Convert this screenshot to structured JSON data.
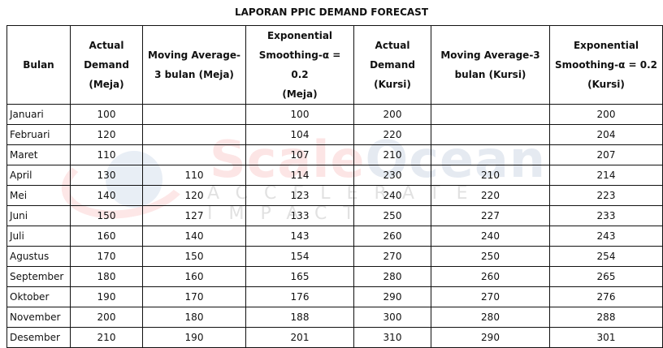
{
  "title": "LAPORAN PPIC DEMAND FORECAST",
  "watermark": {
    "brand_part1": "Scale",
    "brand_part2": "Ocean",
    "tagline": "ACCELERATE IMPACT",
    "colors": {
      "scale": "#f06e6e",
      "ocean": "#b4c3d7"
    }
  },
  "table": {
    "headers": [
      {
        "lines": [
          "Bulan"
        ]
      },
      {
        "lines": [
          "Actual",
          "Demand",
          "(Meja)"
        ]
      },
      {
        "lines": [
          "Moving Average-",
          "3 bulan (Meja)"
        ]
      },
      {
        "lines": [
          "Exponential",
          "Smoothing-α = 0.2",
          "(Meja)"
        ]
      },
      {
        "lines": [
          "Actual",
          "Demand",
          "(Kursi)"
        ]
      },
      {
        "lines": [
          "Moving Average-3",
          "bulan (Kursi)"
        ]
      },
      {
        "lines": [
          "Exponential",
          "Smoothing-α = 0.2",
          "(Kursi)"
        ]
      }
    ],
    "rows": [
      [
        "Januari",
        "100",
        "",
        "100",
        "200",
        "",
        "200"
      ],
      [
        "Februari",
        "120",
        "",
        "104",
        "220",
        "",
        "204"
      ],
      [
        "Maret",
        "110",
        "",
        "107",
        "210",
        "",
        "207"
      ],
      [
        "April",
        "130",
        "110",
        "114",
        "230",
        "210",
        "214"
      ],
      [
        "Mei",
        "140",
        "120",
        "123",
        "240",
        "220",
        "223"
      ],
      [
        "Juni",
        "150",
        "127",
        "133",
        "250",
        "227",
        "233"
      ],
      [
        "Juli",
        "160",
        "140",
        "143",
        "260",
        "240",
        "243"
      ],
      [
        "Agustus",
        "170",
        "150",
        "154",
        "270",
        "250",
        "254"
      ],
      [
        "September",
        "180",
        "160",
        "165",
        "280",
        "260",
        "265"
      ],
      [
        "Oktober",
        "190",
        "170",
        "176",
        "290",
        "270",
        "276"
      ],
      [
        "November",
        "200",
        "180",
        "188",
        "300",
        "280",
        "288"
      ],
      [
        "Desember",
        "210",
        "190",
        "201",
        "310",
        "290",
        "301"
      ]
    ]
  }
}
